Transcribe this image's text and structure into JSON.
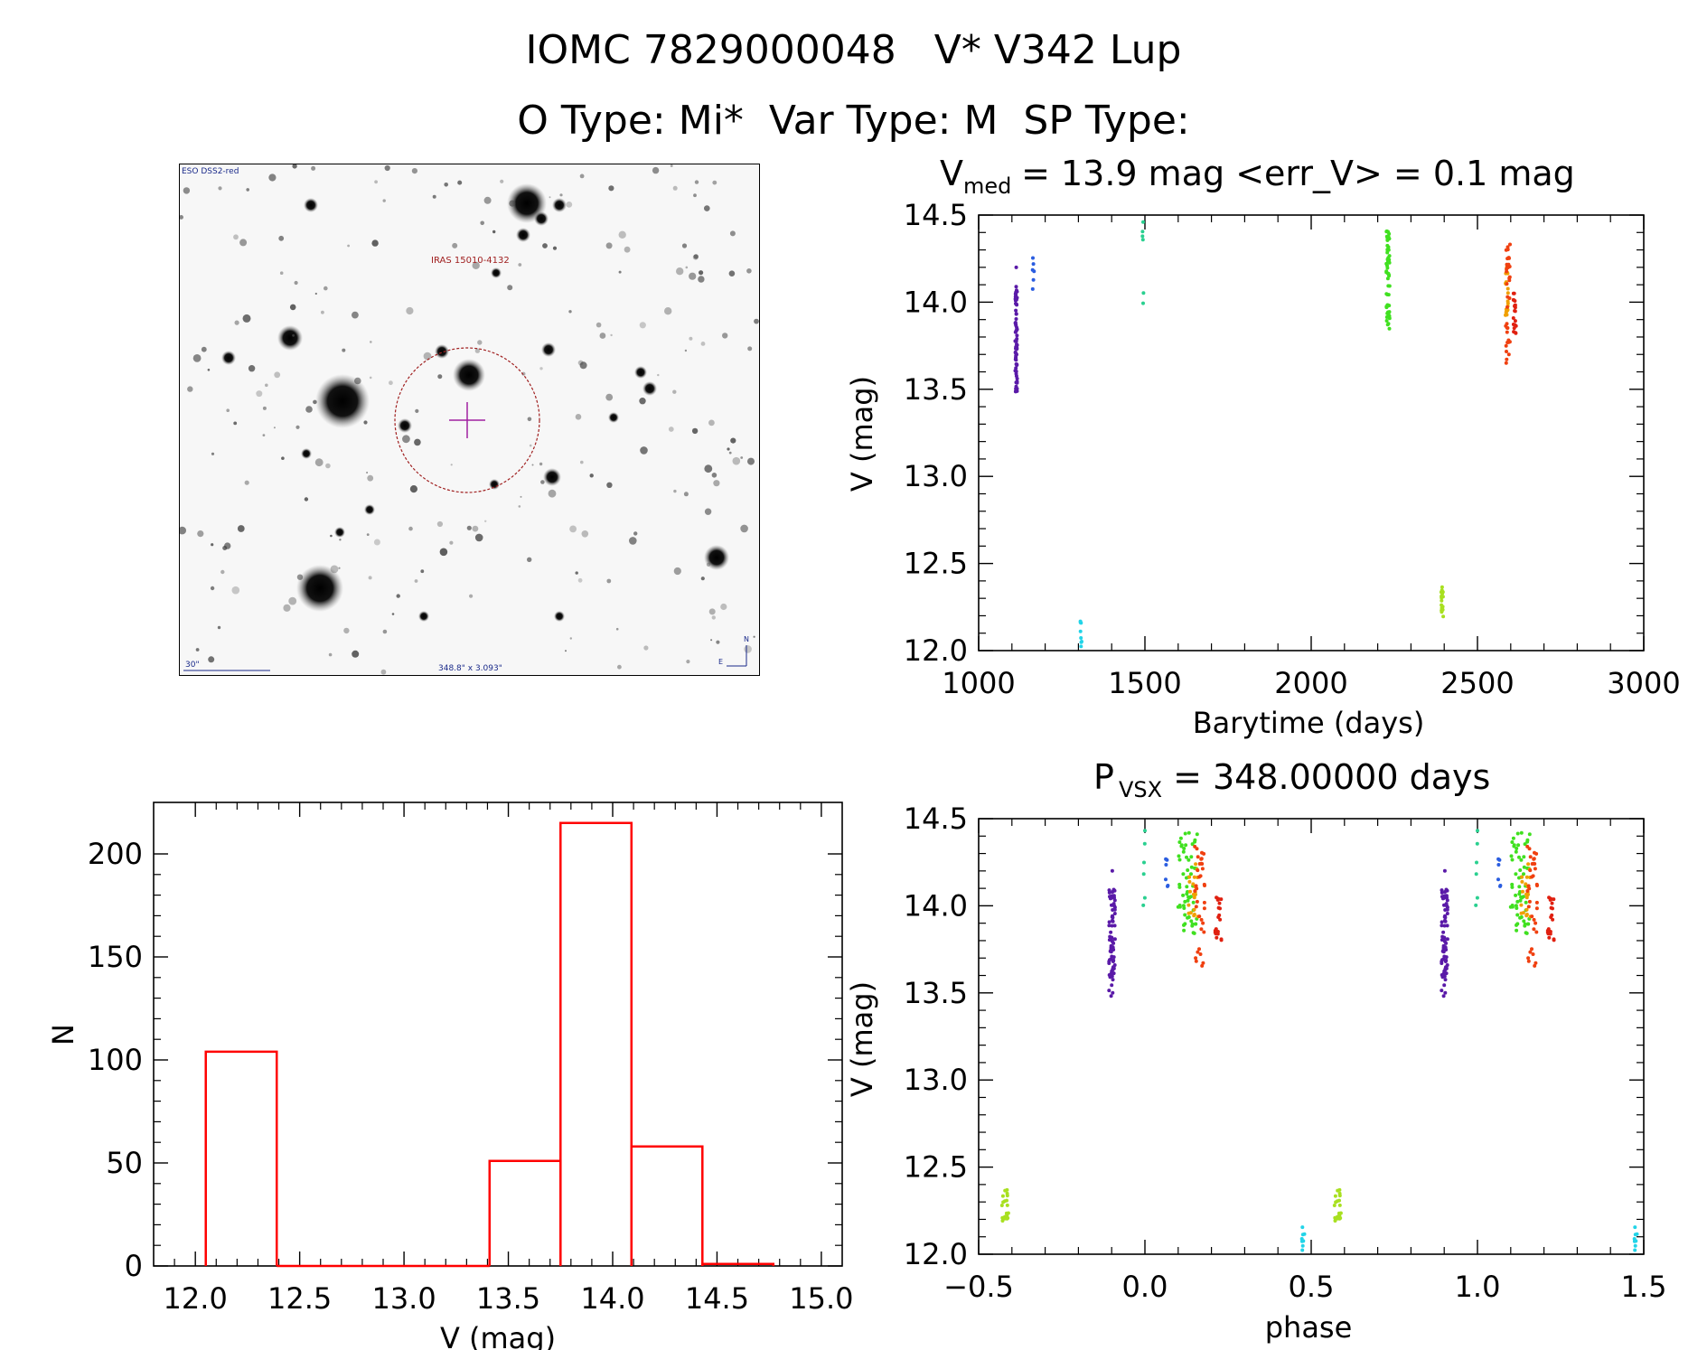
{
  "header": {
    "title_line1": "IOMC 7829000048   V* V342 Lup",
    "title_line2": "O Type: Mi*  Var Type: M  SP Type:"
  },
  "finder_chart": {
    "survey_label": "ESO DSS2-red",
    "target_label": "IRAS 15010-4132",
    "scale_label": "30\"",
    "coords_label": "348.8\" x 3.093\"",
    "north_label": "N",
    "east_label": "E"
  },
  "chart_data": [
    {
      "type": "scatter",
      "id": "light_curve",
      "title_main": "V",
      "title_sub": "med",
      "title_rest": " = 13.9 mag <err_V> = 0.1 mag",
      "xlabel": "Barytime (days)",
      "ylabel": "V (mag)",
      "xlim": [
        1000,
        3000
      ],
      "ylim": [
        14.5,
        12.0
      ],
      "xticks": [
        1000,
        1500,
        2000,
        2500,
        3000
      ],
      "yticks": [
        12.0,
        12.5,
        13.0,
        13.5,
        14.0,
        14.5
      ],
      "series": [
        {
          "name": "group1",
          "color": "#5a1aa8",
          "x_range": [
            1110,
            1116
          ],
          "y_range": [
            13.48,
            14.1
          ],
          "n": 70,
          "extra": [
            [
              1113,
              14.2
            ]
          ]
        },
        {
          "name": "group2",
          "color": "#2a5de0",
          "x_range": [
            1162,
            1167
          ],
          "y_range": [
            14.05,
            14.27
          ],
          "n": 6
        },
        {
          "name": "group3",
          "color": "#22d4e8",
          "x_range": [
            1306,
            1310
          ],
          "y_range": [
            12.02,
            12.17
          ],
          "n": 8
        },
        {
          "name": "group4",
          "color": "#2ad090",
          "x_range": [
            1492,
            1496
          ],
          "y_range": [
            13.98,
            14.47
          ],
          "n": 6
        },
        {
          "name": "group5",
          "color": "#40e020",
          "x_range": [
            2226,
            2236
          ],
          "y_range": [
            13.84,
            14.42
          ],
          "n": 60
        },
        {
          "name": "group6",
          "color": "#a8e020",
          "x_range": [
            2391,
            2397
          ],
          "y_range": [
            12.19,
            12.37
          ],
          "n": 20
        },
        {
          "name": "group7",
          "color": "#f0a000",
          "x_range": [
            2584,
            2592
          ],
          "y_range": [
            13.9,
            14.25
          ],
          "n": 20
        },
        {
          "name": "group8",
          "color": "#f04010",
          "x_range": [
            2585,
            2598
          ],
          "y_range": [
            13.65,
            14.35
          ],
          "n": 35
        },
        {
          "name": "group9",
          "color": "#e02010",
          "x_range": [
            2608,
            2616
          ],
          "y_range": [
            13.8,
            14.05
          ],
          "n": 20
        }
      ]
    },
    {
      "type": "bar",
      "id": "histogram",
      "xlabel": "V (mag)",
      "ylabel": "N",
      "xlim": [
        11.8,
        15.1
      ],
      "ylim": [
        0,
        225
      ],
      "xticks": [
        12.0,
        12.5,
        13.0,
        13.5,
        14.0,
        14.5,
        15.0
      ],
      "yticks": [
        0,
        50,
        100,
        150,
        200
      ],
      "bin_edges": [
        12.05,
        12.39,
        12.73,
        13.07,
        13.41,
        13.75,
        14.09,
        14.43,
        14.77
      ],
      "values": [
        104,
        0,
        0,
        0,
        51,
        215,
        58,
        1
      ],
      "color": "#ff0000"
    },
    {
      "type": "scatter",
      "id": "phase_plot",
      "title_main": "P",
      "title_sub": "VSX",
      "title_rest": " = 348.00000 days",
      "xlabel": "phase",
      "ylabel": "V (mag)",
      "xlim": [
        -0.5,
        1.5
      ],
      "ylim": [
        14.5,
        12.0
      ],
      "xticks": [
        -0.5,
        0.0,
        0.5,
        1.0,
        1.5
      ],
      "yticks": [
        12.0,
        12.5,
        13.0,
        13.5,
        14.0,
        14.5
      ],
      "series": [
        {
          "name": "group1",
          "color": "#5a1aa8",
          "x_range": [
            -0.108,
            -0.09
          ],
          "y_range": [
            13.48,
            14.1
          ],
          "n": 70,
          "extra": [
            [
              -0.098,
              14.2
            ]
          ]
        },
        {
          "name": "group2",
          "color": "#2a5de0",
          "x_range": [
            0.06,
            0.075
          ],
          "y_range": [
            14.05,
            14.27
          ],
          "n": 6
        },
        {
          "name": "group3",
          "color": "#22d4e8",
          "x_range": [
            0.47,
            0.48
          ],
          "y_range": [
            12.02,
            12.17
          ],
          "n": 8
        },
        {
          "name": "group4",
          "color": "#2ad090",
          "x_range": [
            -0.005,
            0.005
          ],
          "y_range": [
            13.98,
            14.47
          ],
          "n": 6
        },
        {
          "name": "group5",
          "color": "#40e020",
          "x_range": [
            0.1,
            0.16
          ],
          "y_range": [
            13.84,
            14.42
          ],
          "n": 60
        },
        {
          "name": "group6",
          "color": "#a8e020",
          "x_range": [
            -0.43,
            -0.41
          ],
          "y_range": [
            12.19,
            12.37
          ],
          "n": 20
        },
        {
          "name": "group7",
          "color": "#f0a000",
          "x_range": [
            0.13,
            0.16
          ],
          "y_range": [
            13.9,
            14.25
          ],
          "n": 20
        },
        {
          "name": "group8",
          "color": "#f04010",
          "x_range": [
            0.15,
            0.18
          ],
          "y_range": [
            13.65,
            14.35
          ],
          "n": 35
        },
        {
          "name": "group9",
          "color": "#e02010",
          "x_range": [
            0.21,
            0.23
          ],
          "y_range": [
            13.8,
            14.05
          ],
          "n": 20
        }
      ],
      "repeat_offset": 1.0
    }
  ]
}
